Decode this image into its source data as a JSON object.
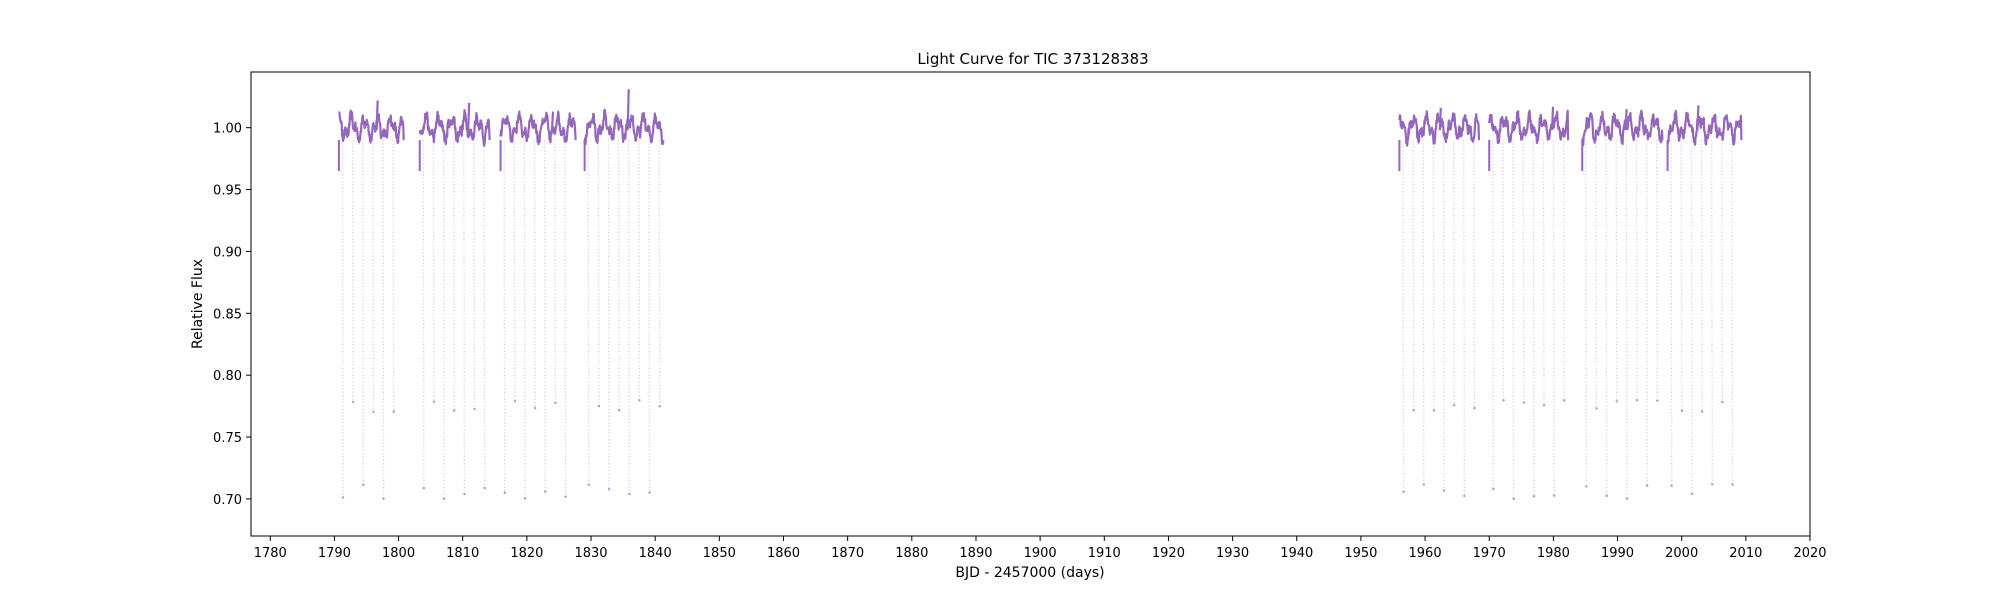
{
  "chart_data": {
    "type": "scatter",
    "title": "Light Curve for TIC 373128383",
    "xlabel": "BJD - 2457000 (days)",
    "ylabel": "Relative Flux",
    "xlim": [
      1777,
      2020
    ],
    "ylim": [
      0.67,
      1.045
    ],
    "xticks": [
      1780,
      1790,
      1800,
      1810,
      1820,
      1830,
      1840,
      1850,
      1860,
      1870,
      1880,
      1890,
      1900,
      1910,
      1920,
      1930,
      1940,
      1950,
      1960,
      1970,
      1980,
      1990,
      2000,
      2010,
      2020
    ],
    "yticks": [
      0.7,
      0.75,
      0.8,
      0.85,
      0.9,
      0.95,
      1.0
    ],
    "grid": false,
    "legend": "none",
    "series": [
      {
        "color": "#9467bd",
        "segments": [
          {
            "x_start": 1790.7,
            "x_end": 1800.8,
            "y_min": 0.69,
            "y_max": 1.022
          },
          {
            "x_start": 1803.3,
            "x_end": 1814.2,
            "y_min": 0.69,
            "y_max": 1.02
          },
          {
            "x_start": 1815.9,
            "x_end": 1827.6,
            "y_min": 0.695,
            "y_max": 1.013
          },
          {
            "x_start": 1829.0,
            "x_end": 1841.3,
            "y_min": 0.695,
            "y_max": 1.031
          },
          {
            "x_start": 1956.0,
            "x_end": 1968.4,
            "y_min": 0.7,
            "y_max": 1.016
          },
          {
            "x_start": 1970.0,
            "x_end": 1982.3,
            "y_min": 0.695,
            "y_max": 1.017
          },
          {
            "x_start": 1984.5,
            "x_end": 1997.0,
            "y_min": 0.7,
            "y_max": 1.015
          },
          {
            "x_start": 1997.8,
            "x_end": 2009.3,
            "y_min": 0.69,
            "y_max": 1.018
          }
        ],
        "eclipse_period_days": 1.58,
        "eclipse_depths": [
          0.7,
          0.775
        ]
      }
    ]
  }
}
